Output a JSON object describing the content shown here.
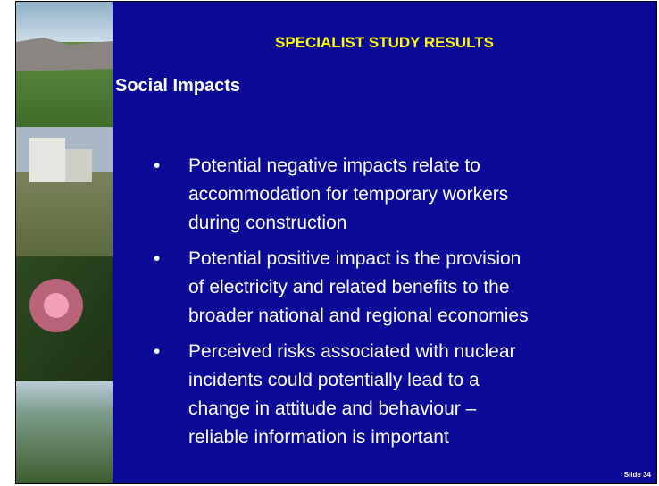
{
  "slide": {
    "title": "SPECIALIST STUDY RESULTS",
    "heading": "Social Impacts",
    "bullets": [
      [
        "Potential negative impacts relate to",
        "accommodation for temporary workers",
        "during construction"
      ],
      [
        "Potential positive impact is the provision",
        "of electricity and related benefits to the",
        "broader national and regional economies"
      ],
      [
        "Perceived risks associated with nuclear",
        "incidents could potentially lead to a",
        "change in attitude and behaviour –",
        "reliable information is important"
      ]
    ],
    "slide_number": "Slide 34"
  }
}
